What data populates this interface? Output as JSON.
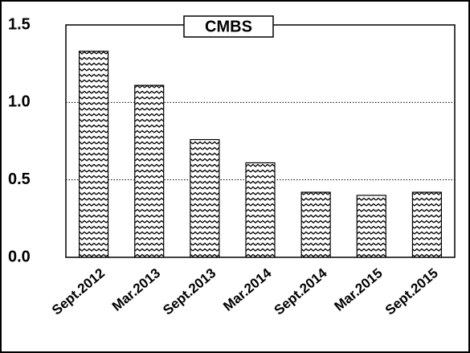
{
  "chart_data": {
    "type": "bar",
    "title": "CMBS",
    "categories": [
      "Sept.2012",
      "Mar.2013",
      "Sept.2013",
      "Mar.2014",
      "Sept.2014",
      "Mar.2015",
      "Sept.2015"
    ],
    "values": [
      1.33,
      1.11,
      0.76,
      0.61,
      0.42,
      0.4,
      0.42
    ],
    "color": "#000000",
    "ylim": [
      0,
      1.5
    ],
    "yticks": [
      {
        "value": 0,
        "label": "0.0"
      },
      0.5,
      {
        "value": 1,
        "label": "1.0"
      },
      1.5
    ],
    "grid": true
  }
}
